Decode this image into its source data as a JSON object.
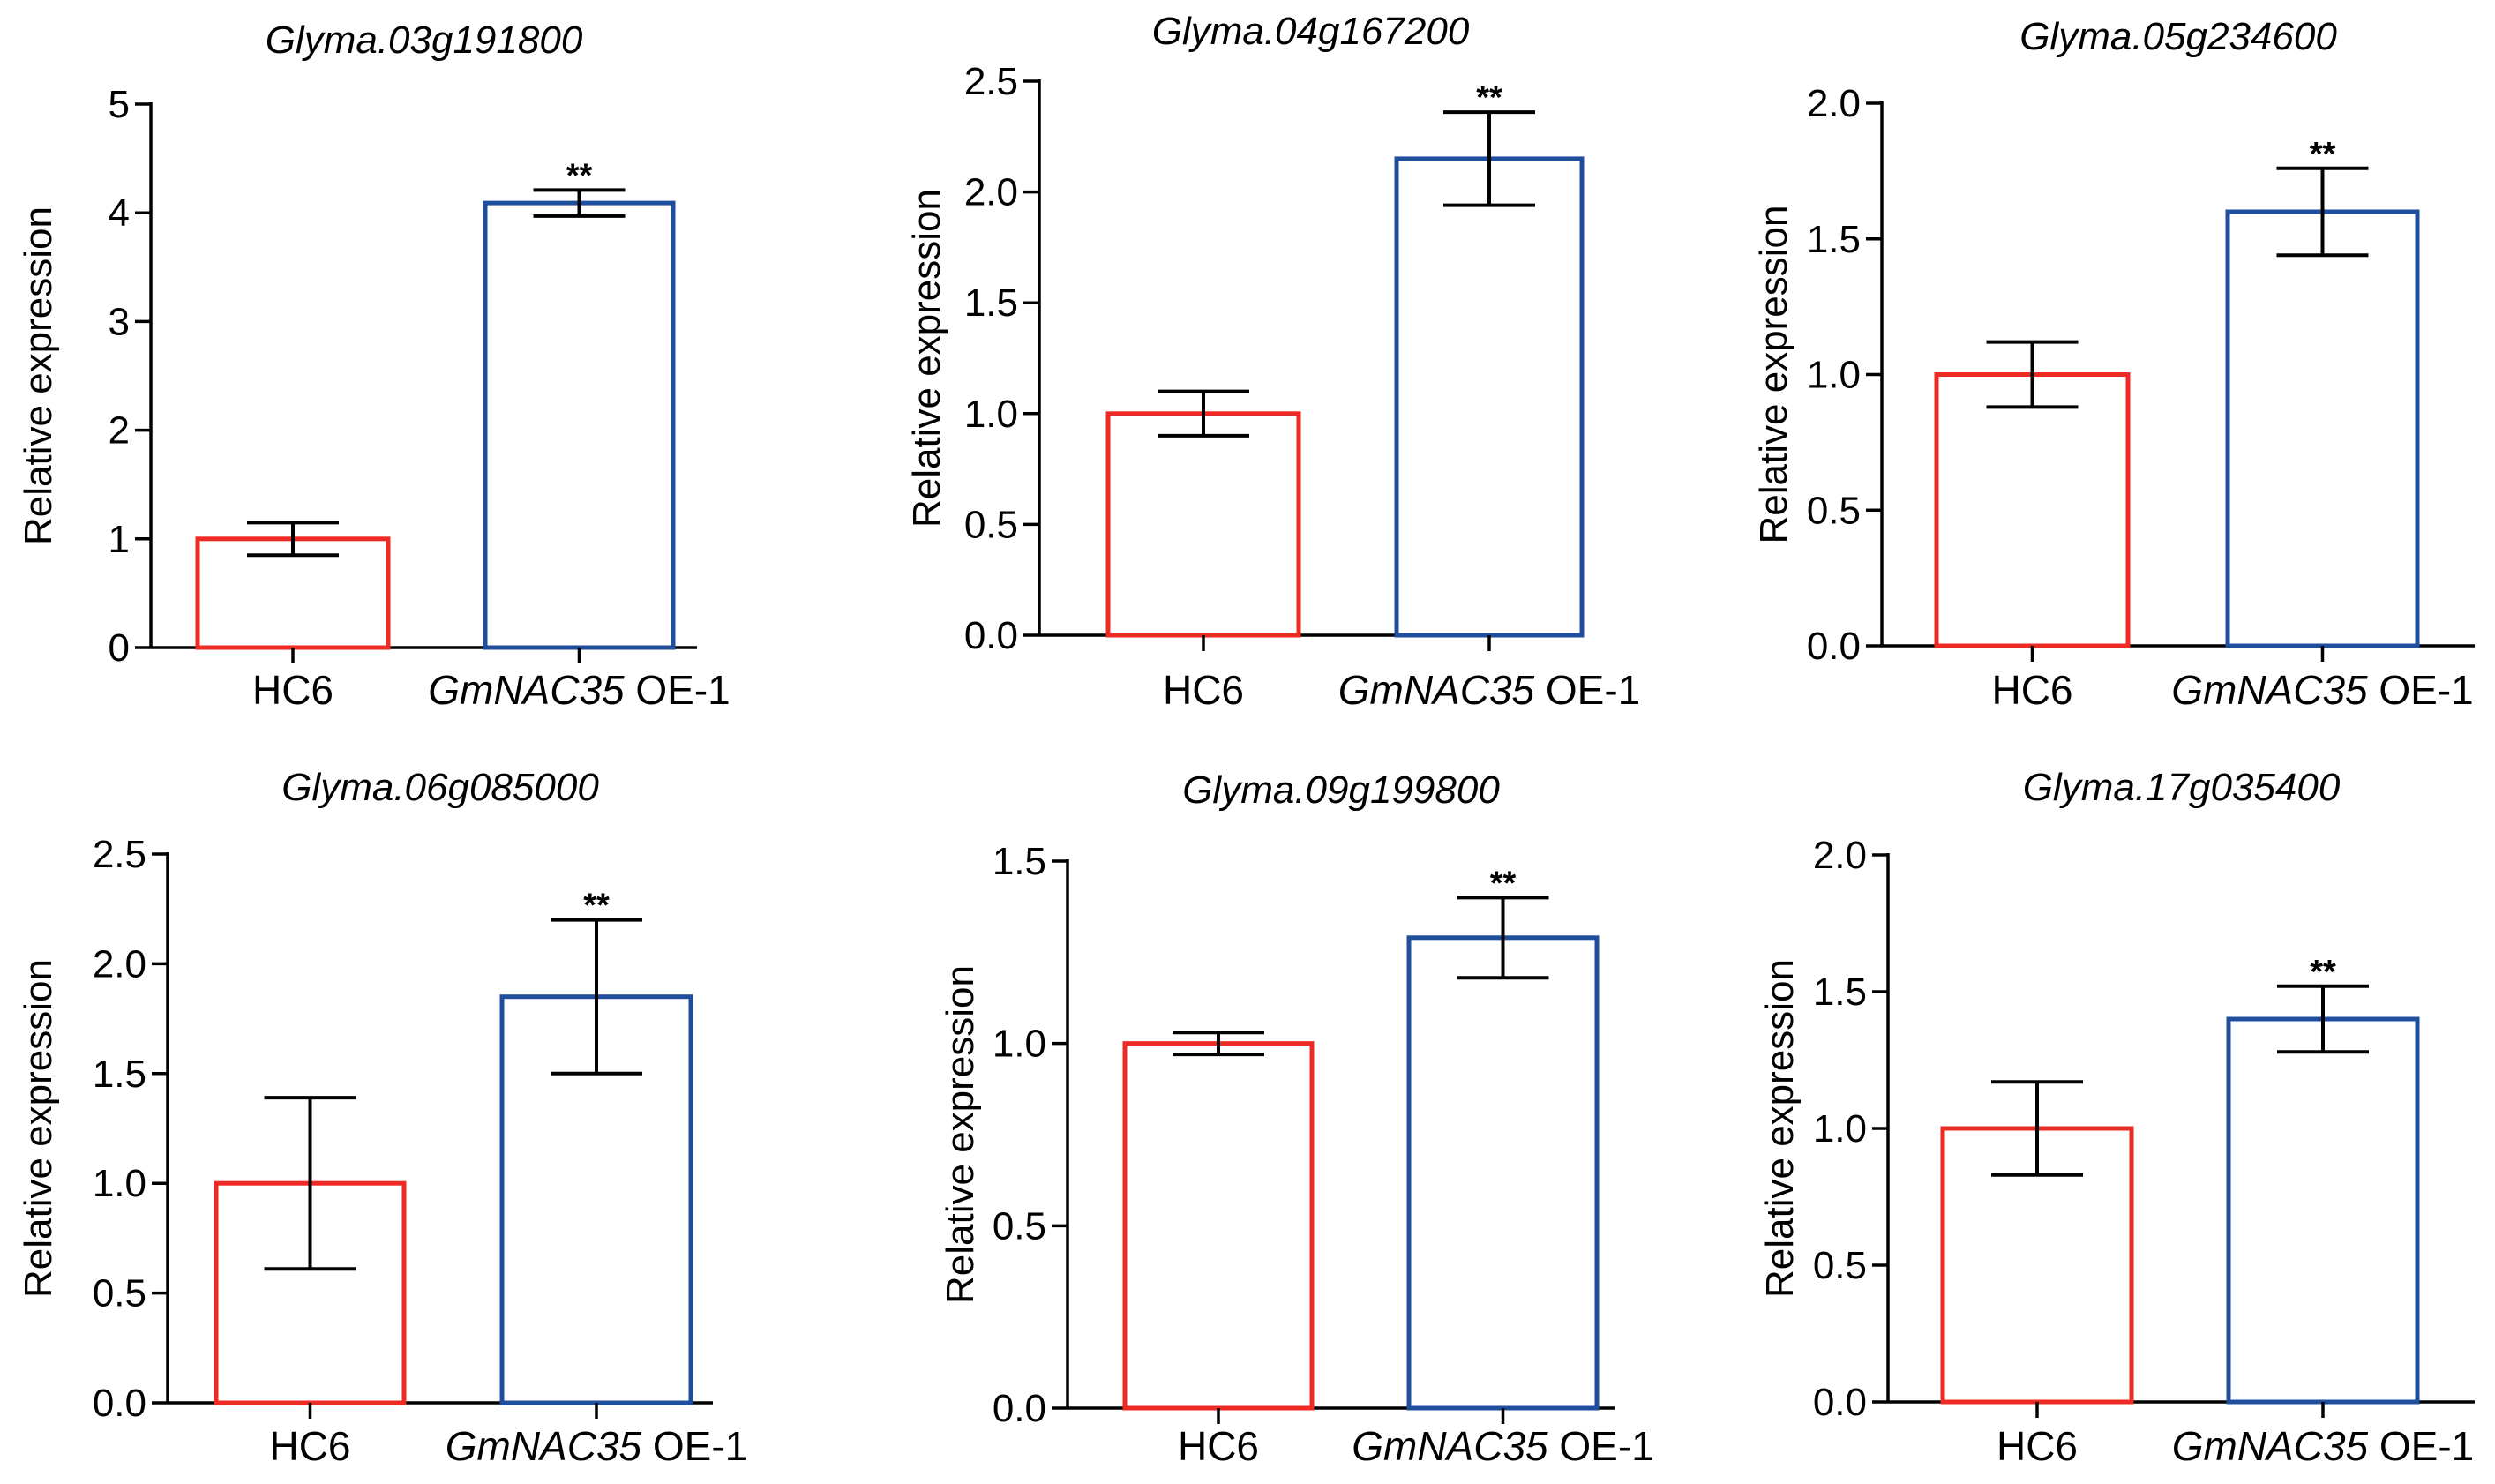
{
  "chart_data": [
    {
      "type": "bar",
      "title": "Glyma.03g191800",
      "ylabel": "Relative expression",
      "ylim": [
        0,
        5
      ],
      "yticks": [
        "0",
        "1",
        "2",
        "3",
        "4",
        "5"
      ],
      "categories": [
        {
          "label": "HC6",
          "italic": "",
          "suffix": ""
        },
        {
          "label": "GmNAC35 OE-1",
          "italic": "GmNAC35",
          "suffix": " OE-1"
        }
      ],
      "values": [
        1.0,
        4.09
      ],
      "errors": [
        0.15,
        0.12
      ],
      "significance": [
        "",
        "**"
      ],
      "colors": [
        "#ee2a24",
        "#1f4e9c"
      ]
    },
    {
      "type": "bar",
      "title": "Glyma.04g167200",
      "ylabel": "Relative expression",
      "ylim": [
        0,
        2.5
      ],
      "yticks": [
        "0.0",
        "0.5",
        "1.0",
        "1.5",
        "2.0",
        "2.5"
      ],
      "categories": [
        {
          "label": "HC6",
          "italic": "",
          "suffix": ""
        },
        {
          "label": "GmNAC35 OE-1",
          "italic": "GmNAC35",
          "suffix": " OE-1"
        }
      ],
      "values": [
        1.0,
        2.15
      ],
      "errors": [
        0.1,
        0.21
      ],
      "significance": [
        "",
        "**"
      ],
      "colors": [
        "#ee2a24",
        "#1f4e9c"
      ]
    },
    {
      "type": "bar",
      "title": "Glyma.05g234600",
      "ylabel": "Relative expression",
      "ylim": [
        0,
        2.0
      ],
      "yticks": [
        "0.0",
        "0.5",
        "1.0",
        "1.5",
        "2.0"
      ],
      "categories": [
        {
          "label": "HC6",
          "italic": "",
          "suffix": ""
        },
        {
          "label": "GmNAC35 OE-1",
          "italic": "GmNAC35",
          "suffix": " OE-1"
        }
      ],
      "values": [
        1.0,
        1.6
      ],
      "errors": [
        0.12,
        0.16
      ],
      "significance": [
        "",
        "**"
      ],
      "colors": [
        "#ee2a24",
        "#1f4e9c"
      ]
    },
    {
      "type": "bar",
      "title": "Glyma.06g085000",
      "ylabel": "Relative expression",
      "ylim": [
        0,
        2.5
      ],
      "yticks": [
        "0.0",
        "0.5",
        "1.0",
        "1.5",
        "2.0",
        "2.5"
      ],
      "categories": [
        {
          "label": "HC6",
          "italic": "",
          "suffix": ""
        },
        {
          "label": "GmNAC35 OE-1",
          "italic": "GmNAC35",
          "suffix": " OE-1"
        }
      ],
      "values": [
        1.0,
        1.85
      ],
      "errors": [
        0.39,
        0.35
      ],
      "significance": [
        "",
        "**"
      ],
      "colors": [
        "#ee2a24",
        "#1f4e9c"
      ]
    },
    {
      "type": "bar",
      "title": "Glyma.09g199800",
      "ylabel": "Relative expression",
      "ylim": [
        0,
        1.5
      ],
      "yticks": [
        "0.0",
        "0.5",
        "1.0",
        "1.5"
      ],
      "categories": [
        {
          "label": "HC6",
          "italic": "",
          "suffix": ""
        },
        {
          "label": "GmNAC35 OE-1",
          "italic": "GmNAC35",
          "suffix": " OE-1"
        }
      ],
      "values": [
        1.0,
        1.29
      ],
      "errors": [
        0.03,
        0.11
      ],
      "significance": [
        "",
        "**"
      ],
      "colors": [
        "#ee2a24",
        "#1f4e9c"
      ]
    },
    {
      "type": "bar",
      "title": "Glyma.17g035400",
      "ylabel": "Relative expression",
      "ylim": [
        0,
        2.0
      ],
      "yticks": [
        "0.0",
        "0.5",
        "1.0",
        "1.5",
        "2.0"
      ],
      "categories": [
        {
          "label": "HC6",
          "italic": "",
          "suffix": ""
        },
        {
          "label": "GmNAC35 OE-1",
          "italic": "GmNAC35",
          "suffix": " OE-1"
        }
      ],
      "values": [
        1.0,
        1.4
      ],
      "errors": [
        0.17,
        0.12
      ],
      "significance": [
        "",
        "**"
      ],
      "colors": [
        "#ee2a24",
        "#1f4e9c"
      ]
    }
  ]
}
